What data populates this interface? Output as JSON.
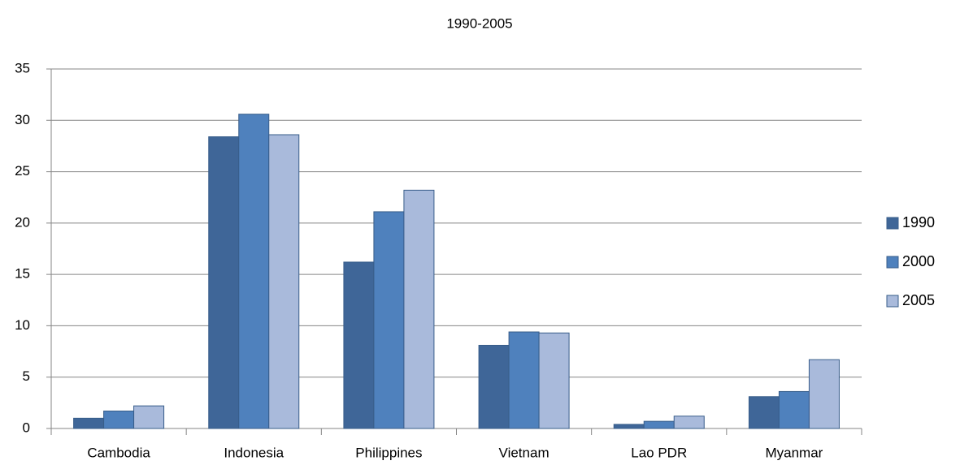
{
  "chart_data": {
    "type": "bar",
    "title": "1990-2005",
    "categories": [
      "Cambodia",
      "Indonesia",
      "Philippines",
      "Vietnam",
      "Lao PDR",
      "Myanmar"
    ],
    "series": [
      {
        "name": "1990",
        "color": "#3f6698",
        "values": [
          1.0,
          28.4,
          16.2,
          8.1,
          0.4,
          3.1
        ]
      },
      {
        "name": "2000",
        "color": "#4f81bd",
        "values": [
          1.7,
          30.6,
          21.1,
          9.4,
          0.7,
          3.6
        ]
      },
      {
        "name": "2005",
        "color": "#a9badb",
        "values": [
          2.2,
          28.6,
          23.2,
          9.3,
          1.2,
          6.7
        ]
      }
    ],
    "ylim": [
      0,
      35
    ],
    "yticks": [
      0,
      5,
      10,
      15,
      20,
      25,
      30,
      35
    ],
    "grid": true,
    "legend": "right"
  }
}
